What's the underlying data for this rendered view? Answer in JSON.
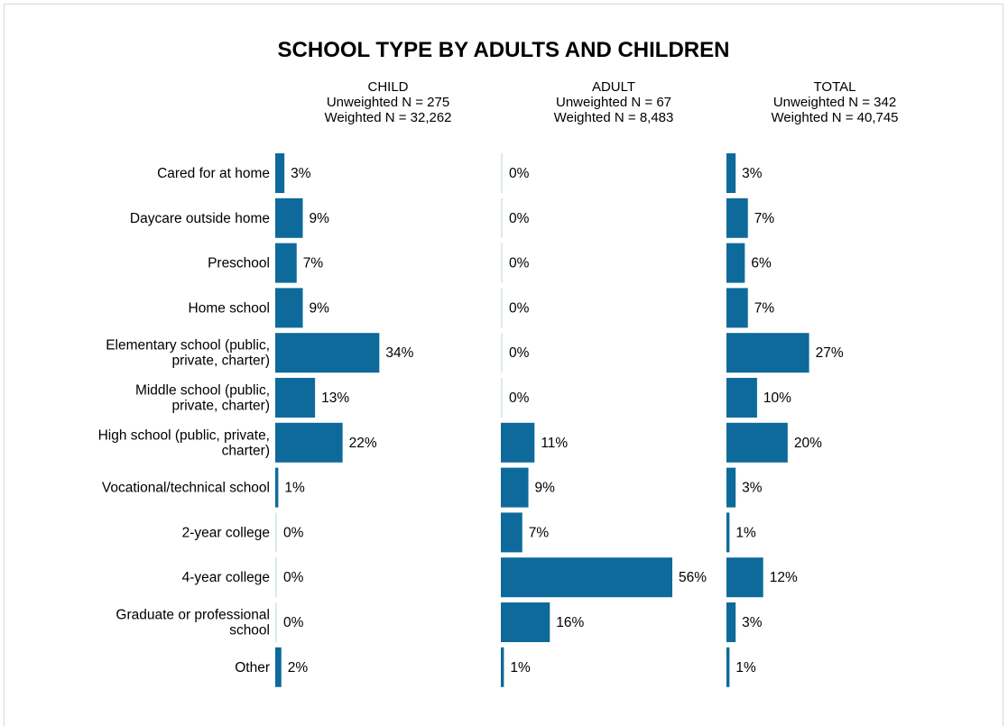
{
  "chart_data": {
    "type": "bar",
    "orientation": "horizontal",
    "title": "SCHOOL TYPE BY ADULTS AND CHILDREN",
    "value_suffix": "%",
    "bar_color": "#0e6a9a",
    "categories": [
      [
        "Cared for at home"
      ],
      [
        "Daycare outside home"
      ],
      [
        "Preschool"
      ],
      [
        "Home school"
      ],
      [
        "Elementary school (public,",
        "private, charter)"
      ],
      [
        "Middle school (public,",
        "private, charter)"
      ],
      [
        "High school (public, private,",
        "charter)"
      ],
      [
        "Vocational/technical school"
      ],
      [
        "2-year college"
      ],
      [
        "4-year college"
      ],
      [
        "Graduate or professional",
        "school"
      ],
      [
        "Other"
      ]
    ],
    "panels": [
      {
        "name": "CHILD",
        "unweighted": "Unweighted N = 275",
        "weighted": "Weighted N = 32,262",
        "values": [
          3,
          9,
          7,
          9,
          34,
          13,
          22,
          1,
          0,
          0,
          0,
          2
        ]
      },
      {
        "name": "ADULT",
        "unweighted": "Unweighted N = 67",
        "weighted": "Weighted N = 8,483",
        "values": [
          0,
          0,
          0,
          0,
          0,
          0,
          11,
          9,
          7,
          56,
          16,
          1
        ]
      },
      {
        "name": "TOTAL",
        "unweighted": "Unweighted N = 342",
        "weighted": "Weighted N = 40,745",
        "values": [
          3,
          7,
          6,
          7,
          27,
          10,
          20,
          3,
          1,
          12,
          3,
          1
        ]
      }
    ],
    "xlim": [
      0,
      56
    ],
    "grid": false,
    "legend": "none"
  }
}
